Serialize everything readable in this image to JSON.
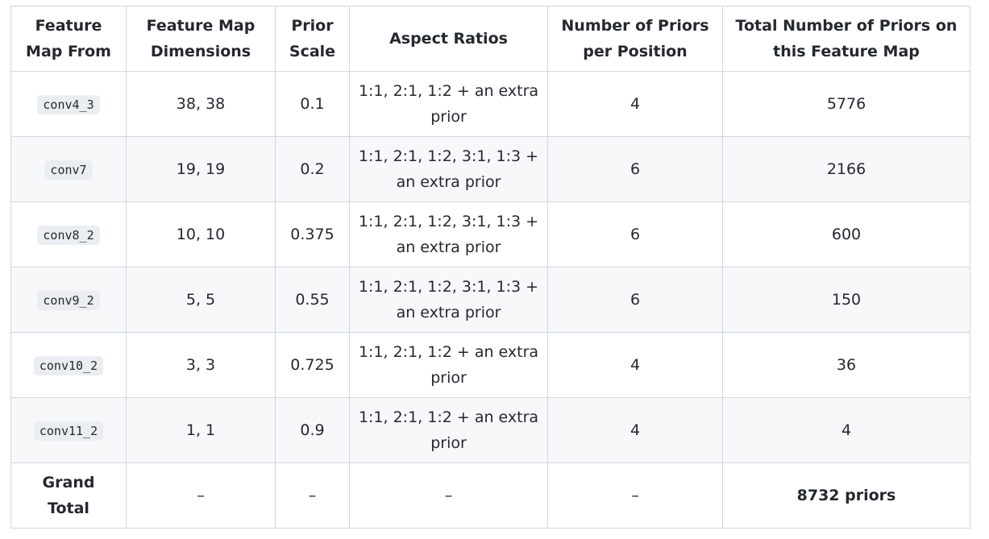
{
  "table": {
    "headers": [
      "Feature Map From",
      "Feature Map Dimensions",
      "Prior Scale",
      "Aspect Ratios",
      "Number of Priors per Position",
      "Total Number of Priors on this Feature Map"
    ],
    "rows": [
      [
        "conv4_3",
        "38, 38",
        "0.1",
        "1:1, 2:1, 1:2 + an extra prior",
        "4",
        "5776"
      ],
      [
        "conv7",
        "19, 19",
        "0.2",
        "1:1, 2:1, 1:2, 3:1, 1:3 + an extra prior",
        "6",
        "2166"
      ],
      [
        "conv8_2",
        "10, 10",
        "0.375",
        "1:1, 2:1, 1:2, 3:1, 1:3 + an extra prior",
        "6",
        "600"
      ],
      [
        "conv9_2",
        "5, 5",
        "0.55",
        "1:1, 2:1, 1:2, 3:1, 1:3 + an extra prior",
        "6",
        "150"
      ],
      [
        "conv10_2",
        "3, 3",
        "0.725",
        "1:1, 2:1, 1:2 + an extra prior",
        "4",
        "36"
      ],
      [
        "conv11_2",
        "1, 1",
        "0.9",
        "1:1, 2:1, 1:2 + an extra prior",
        "4",
        "4"
      ]
    ],
    "total_row": [
      "Grand Total",
      "–",
      "–",
      "–",
      "–",
      "8732 priors"
    ]
  }
}
